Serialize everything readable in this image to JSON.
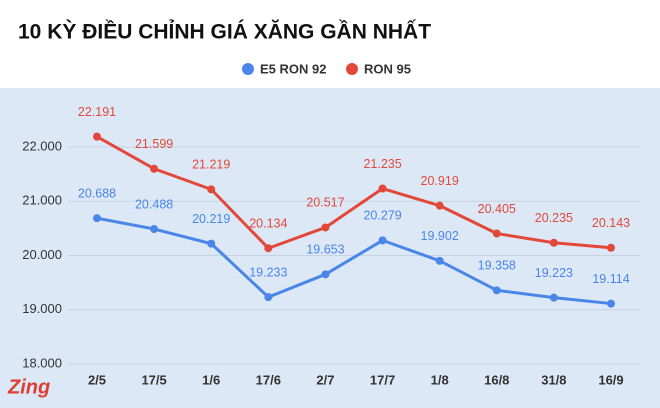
{
  "chart_data": {
    "type": "line",
    "title": "10 KỲ ĐIỀU CHỈNH GIÁ XĂNG GẦN NHẤT",
    "categories": [
      "2/5",
      "17/5",
      "1/6",
      "17/6",
      "2/7",
      "17/7",
      "1/8",
      "16/8",
      "31/8",
      "16/9"
    ],
    "series": [
      {
        "name": "E5 RON 92",
        "color": "#4a86e8",
        "values": [
          20688,
          20488,
          20219,
          19233,
          19653,
          20279,
          19902,
          19358,
          19223,
          19114
        ],
        "value_labels": [
          "20.688",
          "20.488",
          "20.219",
          "19.233",
          "19.653",
          "20.279",
          "19.902",
          "19.358",
          "19.223",
          "19.114"
        ]
      },
      {
        "name": "RON 95",
        "color": "#e2483a",
        "values": [
          22191,
          21599,
          21219,
          20134,
          20517,
          21235,
          20919,
          20405,
          20235,
          20143
        ],
        "value_labels": [
          "22.191",
          "21.599",
          "21.219",
          "20.134",
          "20.517",
          "21.235",
          "20.919",
          "20.405",
          "20.235",
          "20.143"
        ]
      }
    ],
    "ylim": [
      18000,
      23000
    ],
    "yticks": [
      {
        "value": 18000,
        "label": "18.000"
      },
      {
        "value": 19000,
        "label": "19.000"
      },
      {
        "value": 20000,
        "label": "20.000"
      },
      {
        "value": 21000,
        "label": "21.000"
      },
      {
        "value": 22000,
        "label": "22.000"
      }
    ],
    "grid": true,
    "watermark": "Zing"
  }
}
